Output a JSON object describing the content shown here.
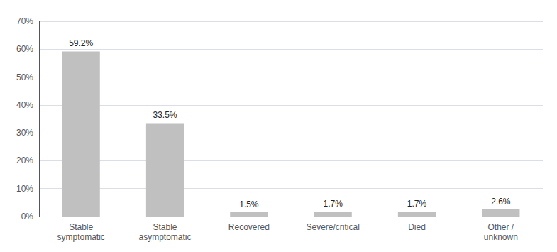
{
  "chart_data": {
    "type": "bar",
    "categories": [
      "Stable\nsymptomatic",
      "Stable\nasymptomatic",
      "Recovered",
      "Severe/critical",
      "Died",
      "Other /\nunknown"
    ],
    "values": [
      59.2,
      33.5,
      1.5,
      1.7,
      1.7,
      2.6
    ],
    "value_labels": [
      "59.2%",
      "33.5%",
      "1.5%",
      "1.7%",
      "1.7%",
      "2.6%"
    ],
    "color": "#c0c0c0",
    "ylim": [
      0,
      70
    ],
    "yticks": [
      {
        "value": 0,
        "label": "0%"
      },
      {
        "value": 10,
        "label": "10%"
      },
      {
        "value": 20,
        "label": "20%"
      },
      {
        "value": 30,
        "label": "30%"
      },
      {
        "value": 40,
        "label": "40%"
      },
      {
        "value": 50,
        "label": "50%"
      },
      {
        "value": 60,
        "label": "60%"
      },
      {
        "value": 70,
        "label": "70%"
      }
    ],
    "grid": true,
    "data_labels": true
  }
}
